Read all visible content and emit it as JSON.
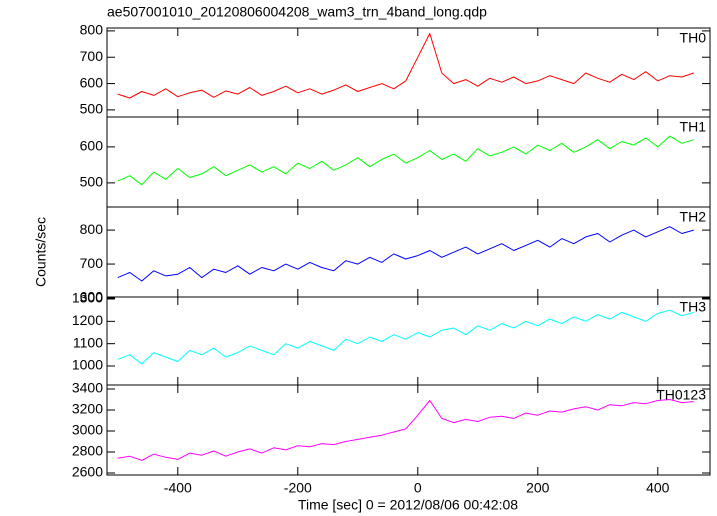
{
  "figure": {
    "title": "ae507001010_20120806004208_wam3_trn_4band_long.qdp",
    "xlabel": "Time [sec] 0 = 2012/08/06 00:42:08",
    "ylabel": "Counts/sec",
    "xlim": [
      -518,
      487
    ],
    "xticks": [
      -400,
      -200,
      0,
      200,
      400
    ]
  },
  "chart_data": [
    {
      "type": "line",
      "x": [
        -500,
        -480,
        -460,
        -440,
        -420,
        -400,
        -380,
        -360,
        -340,
        -320,
        -300,
        -280,
        -260,
        -240,
        -220,
        -200,
        -180,
        -160,
        -140,
        -120,
        -100,
        -80,
        -60,
        -40,
        -20,
        0,
        20,
        40,
        60,
        80,
        100,
        120,
        140,
        160,
        180,
        200,
        220,
        240,
        260,
        280,
        300,
        320,
        340,
        360,
        380,
        400,
        420,
        440,
        460
      ],
      "series": [
        {
          "name": "TH0",
          "color": "#ff0000",
          "values": [
            560,
            545,
            570,
            555,
            580,
            550,
            565,
            575,
            548,
            572,
            560,
            585,
            555,
            570,
            590,
            565,
            580,
            560,
            575,
            595,
            570,
            585,
            600,
            580,
            610,
            700,
            790,
            640,
            600,
            615,
            590,
            620,
            605,
            625,
            600,
            610,
            630,
            615,
            600,
            640,
            620,
            605,
            635,
            615,
            645,
            610,
            630,
            625,
            640
          ]
        }
      ],
      "ylim": [
        473,
        811
      ],
      "yticks": [
        500,
        600,
        700,
        800
      ]
    },
    {
      "type": "line",
      "x": [
        -500,
        -480,
        -460,
        -440,
        -420,
        -400,
        -380,
        -360,
        -340,
        -320,
        -300,
        -280,
        -260,
        -240,
        -220,
        -200,
        -180,
        -160,
        -140,
        -120,
        -100,
        -80,
        -60,
        -40,
        -20,
        0,
        20,
        40,
        60,
        80,
        100,
        120,
        140,
        160,
        180,
        200,
        220,
        240,
        260,
        280,
        300,
        320,
        340,
        360,
        380,
        400,
        420,
        440,
        460
      ],
      "series": [
        {
          "name": "TH1",
          "color": "#00ff00",
          "values": [
            505,
            520,
            495,
            530,
            510,
            540,
            515,
            525,
            545,
            520,
            535,
            550,
            530,
            545,
            525,
            555,
            540,
            560,
            535,
            550,
            570,
            545,
            565,
            580,
            555,
            570,
            590,
            565,
            580,
            560,
            595,
            575,
            585,
            600,
            580,
            605,
            590,
            610,
            585,
            600,
            620,
            595,
            615,
            605,
            625,
            600,
            630,
            610,
            620
          ]
        }
      ],
      "ylim": [
        433,
        683
      ],
      "yticks": [
        500,
        600
      ]
    },
    {
      "type": "line",
      "x": [
        -500,
        -480,
        -460,
        -440,
        -420,
        -400,
        -380,
        -360,
        -340,
        -320,
        -300,
        -280,
        -260,
        -240,
        -220,
        -200,
        -180,
        -160,
        -140,
        -120,
        -100,
        -80,
        -60,
        -40,
        -20,
        0,
        20,
        40,
        60,
        80,
        100,
        120,
        140,
        160,
        180,
        200,
        220,
        240,
        260,
        280,
        300,
        320,
        340,
        360,
        380,
        400,
        420,
        440,
        460
      ],
      "series": [
        {
          "name": "TH2",
          "color": "#0000ff",
          "values": [
            660,
            675,
            650,
            680,
            665,
            670,
            690,
            660,
            685,
            675,
            695,
            670,
            690,
            680,
            700,
            685,
            705,
            690,
            680,
            710,
            700,
            720,
            705,
            730,
            715,
            725,
            740,
            720,
            735,
            750,
            730,
            745,
            760,
            740,
            755,
            770,
            750,
            775,
            760,
            780,
            790,
            765,
            785,
            800,
            780,
            795,
            810,
            790,
            800
          ]
        }
      ],
      "ylim": [
        603,
        868
      ],
      "yticks": [
        600,
        700,
        800
      ]
    },
    {
      "type": "line",
      "x": [
        -500,
        -480,
        -460,
        -440,
        -420,
        -400,
        -380,
        -360,
        -340,
        -320,
        -300,
        -280,
        -260,
        -240,
        -220,
        -200,
        -180,
        -160,
        -140,
        -120,
        -100,
        -80,
        -60,
        -40,
        -20,
        0,
        20,
        40,
        60,
        80,
        100,
        120,
        140,
        160,
        180,
        200,
        220,
        240,
        260,
        280,
        300,
        320,
        340,
        360,
        380,
        400,
        420,
        440,
        460
      ],
      "series": [
        {
          "name": "TH3",
          "color": "#00ffff",
          "values": [
            1030,
            1050,
            1010,
            1060,
            1040,
            1020,
            1070,
            1050,
            1080,
            1040,
            1060,
            1090,
            1070,
            1050,
            1100,
            1080,
            1110,
            1090,
            1070,
            1120,
            1100,
            1130,
            1110,
            1140,
            1120,
            1150,
            1130,
            1160,
            1170,
            1140,
            1180,
            1160,
            1190,
            1170,
            1200,
            1180,
            1210,
            1190,
            1220,
            1200,
            1230,
            1210,
            1240,
            1220,
            1200,
            1235,
            1250,
            1225,
            1240
          ]
        }
      ],
      "ylim": [
        915,
        1309
      ],
      "yticks": [
        1000,
        1100,
        1200,
        1300
      ]
    },
    {
      "type": "line",
      "x": [
        -500,
        -480,
        -460,
        -440,
        -420,
        -400,
        -380,
        -360,
        -340,
        -320,
        -300,
        -280,
        -260,
        -240,
        -220,
        -200,
        -180,
        -160,
        -140,
        -120,
        -100,
        -80,
        -60,
        -40,
        -20,
        0,
        20,
        40,
        60,
        80,
        100,
        120,
        140,
        160,
        180,
        200,
        220,
        240,
        260,
        280,
        300,
        320,
        340,
        360,
        380,
        400,
        420,
        440,
        460
      ],
      "series": [
        {
          "name": "TH0123",
          "color": "#ff00ff",
          "values": [
            2740,
            2760,
            2720,
            2780,
            2750,
            2730,
            2790,
            2770,
            2810,
            2760,
            2800,
            2830,
            2790,
            2840,
            2820,
            2860,
            2850,
            2880,
            2870,
            2900,
            2920,
            2940,
            2960,
            2990,
            3020,
            3150,
            3290,
            3120,
            3080,
            3110,
            3090,
            3130,
            3140,
            3120,
            3170,
            3150,
            3190,
            3180,
            3210,
            3230,
            3200,
            3250,
            3240,
            3270,
            3260,
            3290,
            3300,
            3270,
            3280
          ]
        }
      ],
      "ylim": [
        2581,
        3438
      ],
      "yticks": [
        2600,
        2800,
        3000,
        3200,
        3400
      ]
    }
  ]
}
